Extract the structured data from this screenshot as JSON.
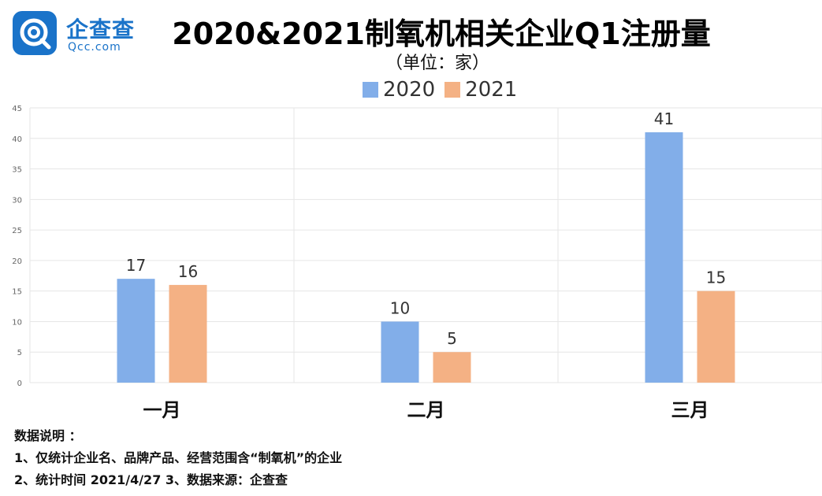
{
  "logo": {
    "cn": "企查查",
    "en": "Qcc.com"
  },
  "title": "2020&2021制氧机相关企业Q1注册量",
  "subtitle": "（单位：家）",
  "colors": {
    "series_2020": "#82aee9",
    "series_2021": "#f4b184",
    "grid": "#e6e6e6",
    "logo": "#1a73c9"
  },
  "chart_data": {
    "type": "bar",
    "title": "2020&2021制氧机相关企业Q1注册量",
    "subtitle": "（单位：家）",
    "categories": [
      "一月",
      "二月",
      "三月"
    ],
    "series": [
      {
        "name": "2020",
        "values": [
          17,
          10,
          41
        ]
      },
      {
        "name": "2021",
        "values": [
          16,
          5,
          15
        ]
      }
    ],
    "ylim": [
      0,
      45
    ],
    "yticks": [
      0,
      5,
      10,
      15,
      20,
      25,
      30,
      35,
      40,
      45
    ],
    "grid": true,
    "legend_position": "top-center"
  },
  "notes": {
    "heading": "数据说明 ：",
    "line1": "1、仅统计企业名、品牌产品、经营范围含“制氧机”的企业",
    "line2": "2、统计时间 2021/4/27   3、数据来源：企查查"
  }
}
